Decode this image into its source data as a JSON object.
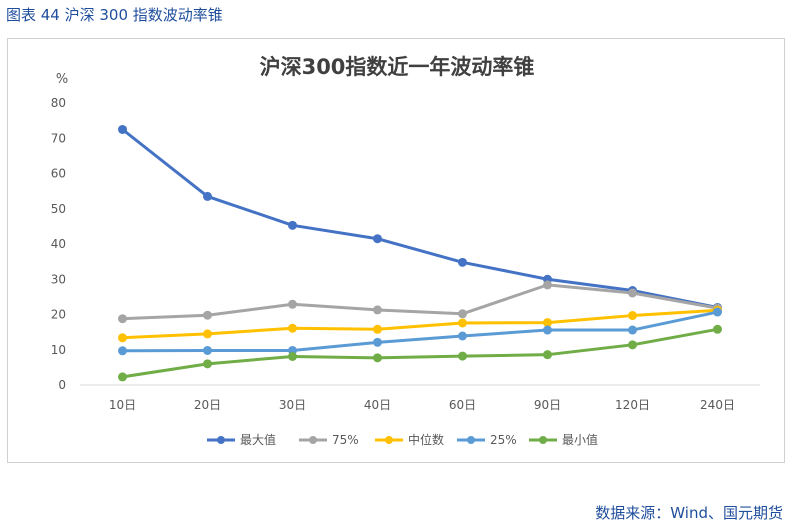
{
  "figure": {
    "caption": "图表 44 沪深 300 指数波动率锥",
    "source": "数据来源：Wind、国元期货"
  },
  "colors": {
    "最大值": "#4472c4",
    "75%": "#a5a5a5",
    "中位数": "#ffc000",
    "25%": "#5b9bd5",
    "最小值": "#70ad47"
  },
  "chart_data": {
    "type": "line",
    "title": "沪深300指数近一年波动率锥",
    "ylabel": "%",
    "ylim": [
      0,
      80
    ],
    "yticks": [
      0,
      10,
      20,
      30,
      40,
      50,
      60,
      70,
      80
    ],
    "grid": false,
    "legend_position": "bottom",
    "categories": [
      "10日",
      "20日",
      "30日",
      "40日",
      "60日",
      "90日",
      "120日",
      "240日"
    ],
    "series": [
      {
        "name": "最大值",
        "values": [
          72.5,
          53.5,
          45.3,
          41.5,
          34.8,
          30.0,
          26.8,
          22.0
        ]
      },
      {
        "name": "75%",
        "values": [
          18.8,
          19.8,
          22.9,
          21.3,
          20.2,
          28.4,
          26.1,
          21.8
        ]
      },
      {
        "name": "中位数",
        "values": [
          13.4,
          14.5,
          16.1,
          15.8,
          17.6,
          17.7,
          19.7,
          21.2
        ]
      },
      {
        "name": "25%",
        "values": [
          9.7,
          9.8,
          9.8,
          12.1,
          13.9,
          15.6,
          15.6,
          20.7
        ]
      },
      {
        "name": "最小值",
        "values": [
          2.3,
          6.0,
          8.1,
          7.7,
          8.2,
          8.6,
          11.4,
          15.8
        ]
      }
    ]
  }
}
